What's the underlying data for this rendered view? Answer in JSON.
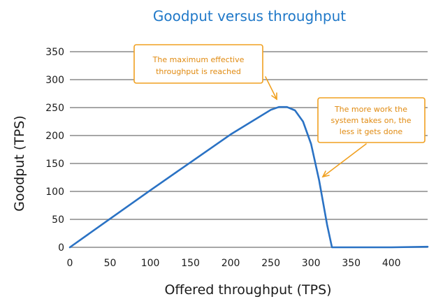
{
  "chart_data": {
    "type": "line",
    "title": "Goodput versus throughput",
    "xlabel": "Offered throughput (TPS)",
    "ylabel": "Goodput (TPS)",
    "xlim": [
      0,
      445
    ],
    "ylim": [
      0,
      350
    ],
    "x_ticks": [
      0,
      50,
      100,
      150,
      200,
      250,
      300,
      350,
      400
    ],
    "y_ticks": [
      0,
      50,
      100,
      150,
      200,
      250,
      300,
      350
    ],
    "grid": "horizontal",
    "series": [
      {
        "color": "#2a72c4",
        "x": [
          0,
          50,
          100,
          150,
          200,
          250,
          260,
          270,
          280,
          290,
          300,
          310,
          320,
          326,
          335,
          350,
          400,
          445
        ],
        "y": [
          0,
          51,
          102,
          152,
          202,
          246,
          251,
          251,
          245,
          225,
          185,
          120,
          40,
          0,
          0,
          0,
          0,
          1
        ]
      }
    ],
    "annotations": [
      {
        "lines": [
          "The maximum effective",
          "throughput is reached"
        ],
        "color": "#f0a020"
      },
      {
        "lines": [
          "The more work the",
          "system takes on, the",
          "less it gets done"
        ],
        "color": "#f0a020"
      }
    ]
  }
}
